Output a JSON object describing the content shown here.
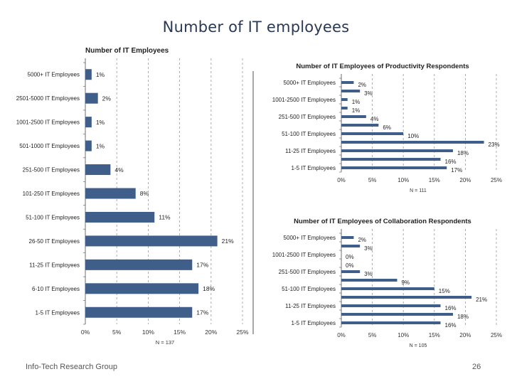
{
  "slide": {
    "title": "Number of IT employees",
    "footer": "Info-Tech Research Group",
    "page_number": "26"
  },
  "colors": {
    "bar": "#3f5f8a",
    "grid": "#9a9a9a",
    "title": "#2a3a55"
  },
  "chart_data": [
    {
      "type": "bar",
      "orientation": "horizontal",
      "title": "Number of IT Employees",
      "categories": [
        "5000+ IT Employees",
        "2501-5000 IT Employees",
        "1001-2500 IT Employees",
        "501-1000 IT Employees",
        "251-500 IT Employees",
        "101-250 IT Employees",
        "51-100 IT Employees",
        "26-50 IT Employees",
        "11-25 IT Employees",
        "6-10 IT Employees",
        "1-5 IT Employees"
      ],
      "values": [
        1,
        2,
        1,
        1,
        4,
        8,
        11,
        21,
        17,
        18,
        17
      ],
      "value_labels": [
        "1%",
        "2%",
        "1%",
        "1%",
        "4%",
        "8%",
        "11%",
        "21%",
        "17%",
        "18%",
        "17%"
      ],
      "xlim": [
        0,
        25
      ],
      "xticks": [
        "0%",
        "5%",
        "10%",
        "15%",
        "20%",
        "25%"
      ],
      "note": "N = 137",
      "grid": "vertical dashed"
    },
    {
      "type": "bar",
      "orientation": "horizontal",
      "title": "Number of IT Employees of Productivity Respondents",
      "category_labels": [
        "5000+ IT Employees",
        "1001-2500 IT Employees",
        "251-500 IT Employees",
        "51-100 IT Employees",
        "11-25 IT Employees",
        "1-5 IT Employees"
      ],
      "values": [
        2,
        3,
        1,
        1,
        4,
        6,
        10,
        23,
        18,
        16,
        17
      ],
      "value_labels": [
        "2%",
        "3%",
        "1%",
        "1%",
        "4%",
        "6%",
        "10%",
        "23%",
        "18%",
        "16%",
        "17%"
      ],
      "xlim": [
        0,
        25
      ],
      "xticks": [
        "0%",
        "5%",
        "10%",
        "15%",
        "20%",
        "25%"
      ],
      "note": "N = 111",
      "grid": "vertical dashed"
    },
    {
      "type": "bar",
      "orientation": "horizontal",
      "title": "Number of IT Employees of Collaboration Respondents",
      "category_labels": [
        "5000+ IT Employees",
        "1001-2500 IT Employees",
        "251-500 IT Employees",
        "51-100 IT Employees",
        "11-25 IT Employees",
        "1-5 IT Employees"
      ],
      "values": [
        2,
        3,
        0,
        0,
        3,
        9,
        15,
        21,
        16,
        18,
        16
      ],
      "value_labels": [
        "2%",
        "3%",
        "0%",
        "0%",
        "3%",
        "9%",
        "15%",
        "21%",
        "16%",
        "18%",
        "16%"
      ],
      "xlim": [
        0,
        25
      ],
      "xticks": [
        "0%",
        "5%",
        "10%",
        "15%",
        "20%",
        "25%"
      ],
      "note": "N = 105",
      "grid": "vertical dashed"
    }
  ]
}
